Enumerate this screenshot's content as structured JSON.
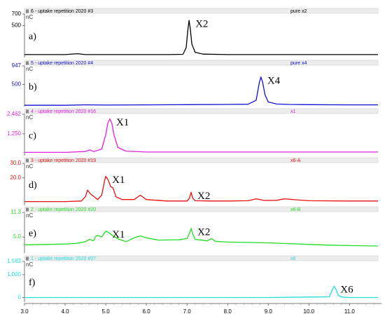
{
  "chart_data": [
    {
      "type": "line",
      "title": "6 - uptake repetition 2020 #3",
      "sample": "pure x2",
      "panel_label": "a)",
      "y_unit": "nC",
      "color": "#000000",
      "xlim": [
        3.0,
        11.7
      ],
      "ylim": [
        -50,
        700
      ],
      "yticks": [
        500,
        700
      ],
      "x": [
        3.0,
        3.5,
        4.0,
        4.3,
        4.5,
        5.0,
        5.5,
        6.0,
        6.5,
        6.9,
        6.98,
        7.02,
        7.05,
        7.08,
        7.12,
        7.2,
        7.4,
        8.0,
        9.0,
        10.0,
        11.0,
        11.7
      ],
      "values": [
        0,
        0,
        0,
        15,
        0,
        0,
        0,
        0,
        0,
        5,
        120,
        420,
        590,
        450,
        180,
        40,
        8,
        0,
        0,
        0,
        0,
        0
      ],
      "annotations": [
        {
          "text": "X2",
          "x": 7.05
        }
      ]
    },
    {
      "type": "line",
      "title": "5 - uptake repetition 2020 #4",
      "sample": "pure x4",
      "panel_label": "b)",
      "y_unit": "nC",
      "color": "#1010d0",
      "xlim": [
        3.0,
        11.7
      ],
      "ylim": [
        -30,
        947
      ],
      "yticks": [
        500,
        947
      ],
      "x": [
        3.0,
        4.0,
        4.5,
        5.0,
        6.0,
        7.0,
        8.0,
        8.5,
        8.7,
        8.78,
        8.82,
        8.86,
        8.92,
        9.0,
        9.2,
        9.5,
        10.0,
        11.0,
        11.7
      ],
      "values": [
        0,
        0,
        10,
        5,
        10,
        15,
        20,
        25,
        120,
        550,
        680,
        560,
        250,
        80,
        30,
        20,
        15,
        10,
        10
      ],
      "annotations": [
        {
          "text": "X4",
          "x": 8.82
        }
      ]
    },
    {
      "type": "line",
      "title": "4 - uptake repetition 2020 #16",
      "sample": "x1",
      "panel_label": "c)",
      "y_unit": "nC",
      "color": "#e020e0",
      "xlim": [
        3.0,
        11.7
      ],
      "ylim": [
        -0.1,
        2.462
      ],
      "yticks": [
        {
          "value": 1.25,
          "label": "1.250"
        },
        2.462
      ],
      "x": [
        3.0,
        4.0,
        4.5,
        4.6,
        4.7,
        4.9,
        5.0,
        5.05,
        5.1,
        5.15,
        5.2,
        5.3,
        5.5,
        6.0,
        7.0,
        8.0,
        9.0,
        10.0,
        11.0,
        11.7
      ],
      "values": [
        0.1,
        0.1,
        0.15,
        0.25,
        0.15,
        0.3,
        1.2,
        1.9,
        2.17,
        1.9,
        1.2,
        0.4,
        0.18,
        0.12,
        0.12,
        0.12,
        0.12,
        0.12,
        0.12,
        0.12
      ],
      "annotations": [
        {
          "text": "X1",
          "x": 5.1
        }
      ]
    },
    {
      "type": "line",
      "title": "3 - uptake repetition 2020 #19",
      "sample": "x6-A",
      "panel_label": "d)",
      "y_unit": "nC",
      "color": "#e81010",
      "xlim": [
        3.0,
        11.7
      ],
      "ylim": [
        1,
        30
      ],
      "yticks": [
        {
          "value": 20,
          "label": "20.0"
        },
        {
          "value": 30,
          "label": "30.0"
        }
      ],
      "x": [
        3.0,
        4.0,
        4.4,
        4.5,
        4.55,
        4.62,
        4.8,
        4.9,
        4.97,
        5.0,
        5.05,
        5.12,
        5.18,
        5.25,
        5.4,
        5.7,
        5.85,
        6.0,
        6.5,
        7.0,
        7.06,
        7.1,
        7.14,
        7.2,
        7.6,
        8.0,
        8.5,
        8.7,
        8.9,
        9.2,
        9.4,
        9.7,
        10.0,
        11.0,
        11.7
      ],
      "values": [
        3.6,
        3.6,
        4,
        7,
        11.5,
        9,
        5,
        8,
        18,
        21,
        19,
        14,
        13,
        7,
        5,
        5,
        8,
        5,
        4,
        4,
        6,
        10,
        6,
        4.2,
        4,
        4,
        4.2,
        5.5,
        4.4,
        4.5,
        5.5,
        4.8,
        4.2,
        4,
        4
      ],
      "annotations": [
        {
          "text": "X1",
          "x": 5.0
        },
        {
          "text": "X2",
          "x": 7.1
        }
      ]
    },
    {
      "type": "line",
      "title": "2 - uptake repetition 2020 #20",
      "sample": "x6-B",
      "panel_label": "e)",
      "y_unit": "nC",
      "color": "#22dd22",
      "xlim": [
        3.0,
        11.7
      ],
      "ylim": [
        0.9,
        11.3
      ],
      "yticks": [
        {
          "value": 5,
          "label": "5.0"
        },
        11.3
      ],
      "x": [
        3.0,
        4.0,
        4.3,
        4.5,
        4.6,
        4.7,
        4.75,
        4.8,
        4.9,
        5.0,
        5.05,
        5.15,
        5.3,
        5.5,
        5.7,
        5.85,
        6.0,
        6.3,
        6.8,
        7.0,
        7.06,
        7.1,
        7.14,
        7.2,
        7.5,
        7.6,
        7.7,
        8.0,
        8.5,
        9.0,
        9.5,
        10.0,
        10.5,
        11.0,
        11.7
      ],
      "values": [
        3.0,
        3.2,
        3.4,
        3.8,
        4.4,
        4.0,
        5.2,
        5.4,
        5.0,
        6.5,
        6.3,
        5.5,
        4.5,
        3.8,
        4.8,
        5.3,
        4.8,
        4.2,
        4.3,
        4.6,
        6.0,
        7.2,
        5.8,
        4.4,
        4.0,
        4.6,
        3.9,
        3.7,
        3.6,
        3.5,
        3.3,
        3.1,
        2.9,
        2.8,
        2.7
      ],
      "annotations": [
        {
          "text": "X1",
          "x": 5.0
        },
        {
          "text": "X2",
          "x": 7.1
        }
      ]
    },
    {
      "type": "line",
      "title": "1 - uptake repetition 2020 #07",
      "sample": "x6",
      "panel_label": "f)",
      "y_unit": "nC",
      "color": "#22dddd",
      "xlim": [
        3.0,
        11.7
      ],
      "ylim": [
        -0.2,
        1.583
      ],
      "yticks": [
        0,
        {
          "value": 1,
          "label": "1.000"
        },
        1.583
      ],
      "xticks": [
        {
          "value": 3,
          "label": "3.0"
        },
        {
          "value": 4,
          "label": "4.0"
        },
        {
          "value": 5,
          "label": "5.0"
        },
        {
          "value": 6,
          "label": "6.0"
        },
        {
          "value": 7,
          "label": "7.0"
        },
        {
          "value": 8,
          "label": "8.0"
        },
        {
          "value": 9,
          "label": "9.0"
        },
        {
          "value": 10,
          "label": "10.0"
        },
        {
          "value": 11,
          "label": "11.0"
        }
      ],
      "x": [
        3.0,
        5.0,
        7.0,
        9.0,
        10.0,
        10.5,
        10.58,
        10.62,
        10.66,
        10.72,
        10.8,
        11.0,
        11.7
      ],
      "values": [
        0,
        0,
        0,
        0,
        0.02,
        0.03,
        0.35,
        0.5,
        0.38,
        0.1,
        0.02,
        0,
        0
      ],
      "annotations": [
        {
          "text": "X6",
          "x": 10.62
        }
      ]
    }
  ]
}
